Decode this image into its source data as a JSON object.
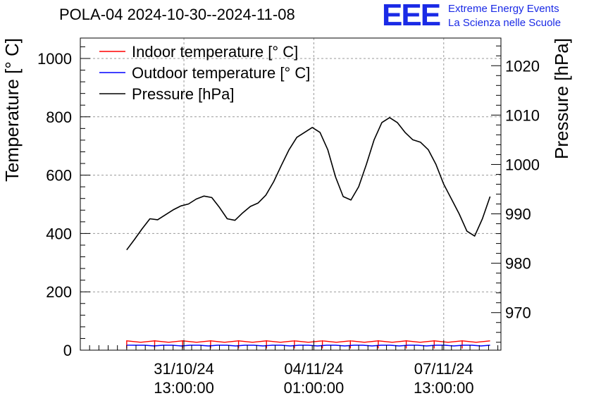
{
  "title": "POLA-04 2024-10-30--2024-11-08",
  "branding": {
    "logo": "EEE",
    "line1": "Extreme Energy Events",
    "line2": "La Scienza nelle Scuole",
    "color": "#1a2ae6"
  },
  "chart_data": {
    "type": "line",
    "ylabel": "Temperature [° C]",
    "y2label": "Pressure [hPa]",
    "ylim": [
      0,
      1070
    ],
    "y2lim": [
      962.4,
      1025.6
    ],
    "yticks": [
      {
        "value": 0,
        "label": "0"
      },
      {
        "value": 200,
        "label": "200"
      },
      {
        "value": 400,
        "label": "400"
      },
      {
        "value": 600,
        "label": "600"
      },
      {
        "value": 800,
        "label": "800"
      },
      {
        "value": 1000,
        "label": "1000"
      }
    ],
    "y2ticks": [
      {
        "value": 970,
        "label": "970"
      },
      {
        "value": 980,
        "label": "980"
      },
      {
        "value": 990,
        "label": "990"
      },
      {
        "value": 1000,
        "label": "1000"
      },
      {
        "value": 1010,
        "label": "1010"
      },
      {
        "value": 1020,
        "label": "1020"
      }
    ],
    "xlim": [
      -30,
      242
    ],
    "xlabel_unit": "hours since 2024-10-30 00:00",
    "xticks": [
      {
        "value": 37,
        "label1": "31/10/24",
        "label2": "13:00:00"
      },
      {
        "value": 121,
        "label1": "04/11/24",
        "label2": "01:00:00"
      },
      {
        "value": 205,
        "label1": "07/11/24",
        "label2": "13:00:00"
      }
    ],
    "grid": true,
    "legend": {
      "position": "top-left",
      "entries": [
        {
          "label": "Indoor temperature [° C]",
          "color": "#ff0000"
        },
        {
          "label": "Outdoor temperature [° C]",
          "color": "#0000ff"
        },
        {
          "label": "Pressure [hPa]",
          "color": "#000000"
        }
      ]
    },
    "series": [
      {
        "name": "Pressure [hPa]",
        "axis": "right",
        "color": "#000000",
        "x": [
          0,
          5,
          10,
          15,
          20,
          25,
          30,
          35,
          40,
          45,
          50,
          55,
          60,
          65,
          70,
          75,
          80,
          85,
          90,
          95,
          100,
          105,
          110,
          115,
          120,
          125,
          130,
          135,
          140,
          145,
          150,
          155,
          160,
          165,
          170,
          175,
          180,
          185,
          190,
          195,
          200,
          205,
          210,
          215,
          220,
          225,
          230,
          235
        ],
        "values": [
          982.7,
          984.8,
          987.0,
          989.0,
          988.8,
          989.8,
          990.8,
          991.6,
          992.0,
          993.0,
          993.6,
          993.3,
          991.3,
          989.0,
          988.7,
          990.2,
          991.5,
          992.2,
          993.8,
          996.5,
          999.8,
          1003.0,
          1005.5,
          1006.5,
          1007.5,
          1006.5,
          1003.0,
          997.5,
          993.5,
          992.8,
          995.5,
          1000.0,
          1005.0,
          1008.5,
          1009.5,
          1008.5,
          1006.5,
          1005.0,
          1004.5,
          1003.0,
          1000.0,
          996.0,
          993.0,
          990.0,
          986.5,
          985.5,
          989.0,
          993.5
        ]
      },
      {
        "name": "Indoor temperature [° C]",
        "axis": "left",
        "color": "#ff0000",
        "x": [
          0,
          235
        ],
        "values": [
          30,
          32
        ]
      },
      {
        "name": "Outdoor temperature [° C]",
        "axis": "left",
        "color": "#0000ff",
        "x": [
          0,
          235
        ],
        "values": [
          17,
          17
        ]
      }
    ]
  },
  "colors": {
    "grid": "#999999",
    "axis": "#000000"
  }
}
